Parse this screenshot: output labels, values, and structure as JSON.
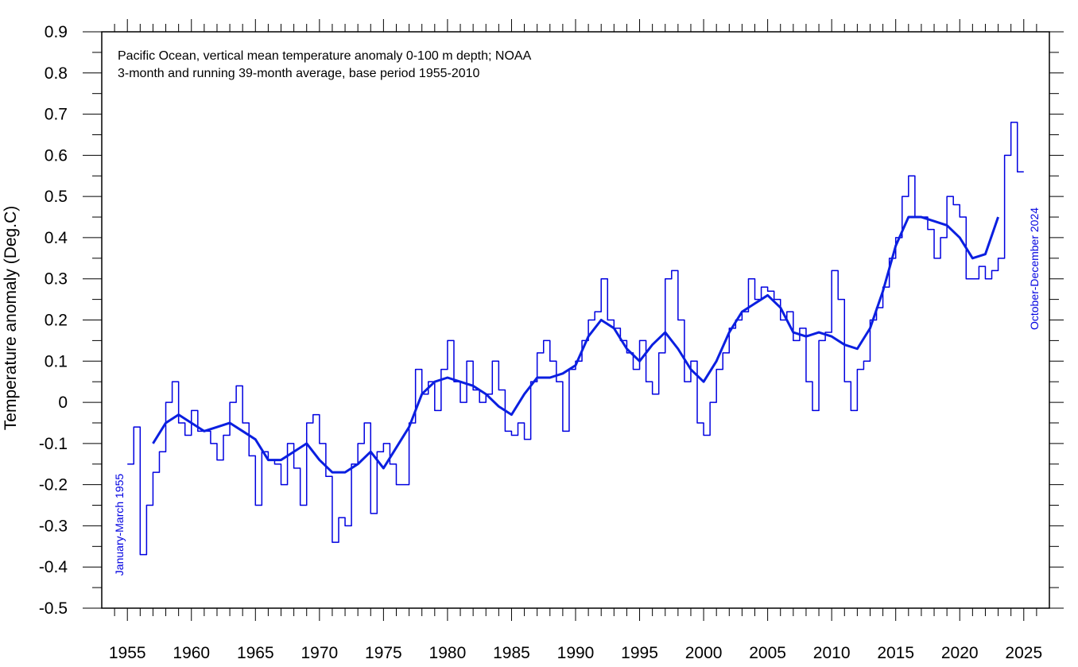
{
  "chart_data": {
    "type": "line",
    "title": "Pacific Ocean, vertical mean temperature anomaly 0-100 m depth; NOAA",
    "subtitle": "3-month and running 39-month average, base period 1955-2010",
    "ylabel": "Temperature anomaly (Deg.C)",
    "annotations": [
      "January-March 1955",
      "October-December 2024"
    ],
    "xlim": [
      1953,
      2027
    ],
    "ylim": [
      -0.5,
      0.9
    ],
    "xticks": [
      1955,
      1960,
      1965,
      1970,
      1975,
      1980,
      1985,
      1990,
      1995,
      2000,
      2005,
      2010,
      2015,
      2020,
      2025
    ],
    "xminorticks": [
      1954,
      1956,
      1957,
      1958,
      1959,
      1961,
      1962,
      1963,
      1964,
      1966,
      1967,
      1968,
      1969,
      1971,
      1972,
      1973,
      1974,
      1976,
      1977,
      1978,
      1979,
      1981,
      1982,
      1983,
      1984,
      1986,
      1987,
      1988,
      1989,
      1991,
      1992,
      1993,
      1994,
      1996,
      1997,
      1998,
      1999,
      2001,
      2002,
      2003,
      2004,
      2006,
      2007,
      2008,
      2009,
      2011,
      2012,
      2013,
      2014,
      2016,
      2017,
      2018,
      2019,
      2021,
      2022,
      2023,
      2024,
      2026
    ],
    "yticks": [
      -0.5,
      -0.4,
      -0.3,
      -0.2,
      -0.1,
      0,
      0.1,
      0.2,
      0.3,
      0.4,
      0.5,
      0.6,
      0.7,
      0.8,
      0.9
    ],
    "yminorticks": [
      -0.45,
      -0.35,
      -0.25,
      -0.15,
      -0.05,
      0.05,
      0.15,
      0.25,
      0.35,
      0.45,
      0.55,
      0.65,
      0.75,
      0.85
    ],
    "series": [
      {
        "color": "#0000e0",
        "style": "step",
        "x": [
          1955,
          1955.5,
          1956,
          1956.5,
          1957,
          1957.5,
          1958,
          1958.5,
          1959,
          1959.5,
          1960,
          1960.5,
          1961,
          1961.5,
          1962,
          1962.5,
          1963,
          1963.5,
          1964,
          1964.5,
          1965,
          1965.5,
          1966,
          1966.5,
          1967,
          1967.5,
          1968,
          1968.5,
          1969,
          1969.5,
          1970,
          1970.5,
          1971,
          1971.5,
          1972,
          1972.5,
          1973,
          1973.5,
          1974,
          1974.5,
          1975,
          1975.5,
          1976,
          1976.5,
          1977,
          1977.5,
          1978,
          1978.5,
          1979,
          1979.5,
          1980,
          1980.5,
          1981,
          1981.5,
          1982,
          1982.5,
          1983,
          1983.5,
          1984,
          1984.5,
          1985,
          1985.5,
          1986,
          1986.5,
          1987,
          1987.5,
          1988,
          1988.5,
          1989,
          1989.5,
          1990,
          1990.5,
          1991,
          1991.5,
          1992,
          1992.5,
          1993,
          1993.5,
          1994,
          1994.5,
          1995,
          1995.5,
          1996,
          1996.5,
          1997,
          1997.5,
          1998,
          1998.5,
          1999,
          1999.5,
          2000,
          2000.5,
          2001,
          2001.5,
          2002,
          2002.5,
          2003,
          2003.5,
          2004,
          2004.5,
          2005,
          2005.5,
          2006,
          2006.5,
          2007,
          2007.5,
          2008,
          2008.5,
          2009,
          2009.5,
          2010,
          2010.5,
          2011,
          2011.5,
          2012,
          2012.5,
          2013,
          2013.5,
          2014,
          2014.5,
          2015,
          2015.5,
          2016,
          2016.5,
          2017,
          2017.5,
          2018,
          2018.5,
          2019,
          2019.5,
          2020,
          2020.5,
          2021,
          2021.5,
          2022,
          2022.5,
          2023,
          2023.5,
          2024,
          2024.5
        ],
        "values": [
          -0.15,
          -0.06,
          -0.37,
          -0.25,
          -0.17,
          -0.12,
          0.0,
          0.05,
          -0.05,
          -0.08,
          -0.02,
          -0.07,
          -0.07,
          -0.1,
          -0.14,
          -0.08,
          0.0,
          0.04,
          -0.05,
          -0.13,
          -0.25,
          -0.12,
          -0.14,
          -0.15,
          -0.2,
          -0.1,
          -0.16,
          -0.25,
          -0.05,
          -0.03,
          -0.1,
          -0.18,
          -0.34,
          -0.28,
          -0.3,
          -0.15,
          -0.1,
          -0.05,
          -0.27,
          -0.12,
          -0.1,
          -0.15,
          -0.2,
          -0.2,
          -0.05,
          0.08,
          0.02,
          0.05,
          -0.02,
          0.08,
          0.15,
          0.05,
          0.0,
          0.1,
          0.03,
          0.0,
          0.02,
          0.1,
          0.03,
          -0.07,
          -0.08,
          -0.05,
          -0.09,
          0.05,
          0.12,
          0.15,
          0.1,
          0.05,
          -0.07,
          0.08,
          0.1,
          0.15,
          0.2,
          0.22,
          0.3,
          0.2,
          0.18,
          0.15,
          0.12,
          0.08,
          0.15,
          0.05,
          0.02,
          0.12,
          0.3,
          0.32,
          0.2,
          0.05,
          0.1,
          -0.05,
          -0.08,
          0.0,
          0.08,
          0.12,
          0.18,
          0.2,
          0.22,
          0.3,
          0.25,
          0.28,
          0.27,
          0.25,
          0.2,
          0.22,
          0.15,
          0.18,
          0.05,
          -0.02,
          0.15,
          0.17,
          0.32,
          0.25,
          0.05,
          -0.02,
          0.08,
          0.1,
          0.2,
          0.23,
          0.28,
          0.35,
          0.4,
          0.5,
          0.55,
          0.45,
          0.45,
          0.42,
          0.35,
          0.4,
          0.5,
          0.48,
          0.45,
          0.3,
          0.3,
          0.33,
          0.3,
          0.32,
          0.35,
          0.6,
          0.68,
          0.56
        ]
      },
      {
        "color": "#0a1fe0",
        "style": "smooth",
        "x": [
          1957,
          1958,
          1959,
          1960,
          1961,
          1962,
          1963,
          1964,
          1965,
          1966,
          1967,
          1968,
          1969,
          1970,
          1971,
          1972,
          1973,
          1974,
          1975,
          1976,
          1977,
          1978,
          1979,
          1980,
          1981,
          1982,
          1983,
          1984,
          1985,
          1986,
          1987,
          1988,
          1989,
          1990,
          1991,
          1992,
          1993,
          1994,
          1995,
          1996,
          1997,
          1998,
          1999,
          2000,
          2001,
          2002,
          2003,
          2004,
          2005,
          2006,
          2007,
          2008,
          2009,
          2010,
          2011,
          2012,
          2013,
          2014,
          2015,
          2016,
          2017,
          2018,
          2019,
          2020,
          2021,
          2022,
          2023
        ],
        "values": [
          -0.1,
          -0.05,
          -0.03,
          -0.05,
          -0.07,
          -0.06,
          -0.05,
          -0.07,
          -0.09,
          -0.14,
          -0.14,
          -0.12,
          -0.1,
          -0.14,
          -0.17,
          -0.17,
          -0.15,
          -0.12,
          -0.16,
          -0.11,
          -0.06,
          0.02,
          0.05,
          0.06,
          0.05,
          0.04,
          0.02,
          -0.01,
          -0.03,
          0.02,
          0.06,
          0.06,
          0.07,
          0.09,
          0.16,
          0.2,
          0.18,
          0.13,
          0.1,
          0.14,
          0.17,
          0.13,
          0.08,
          0.05,
          0.1,
          0.17,
          0.22,
          0.24,
          0.26,
          0.23,
          0.17,
          0.16,
          0.17,
          0.16,
          0.14,
          0.13,
          0.18,
          0.27,
          0.38,
          0.45,
          0.45,
          0.44,
          0.43,
          0.4,
          0.35,
          0.36,
          0.45
        ]
      }
    ]
  }
}
